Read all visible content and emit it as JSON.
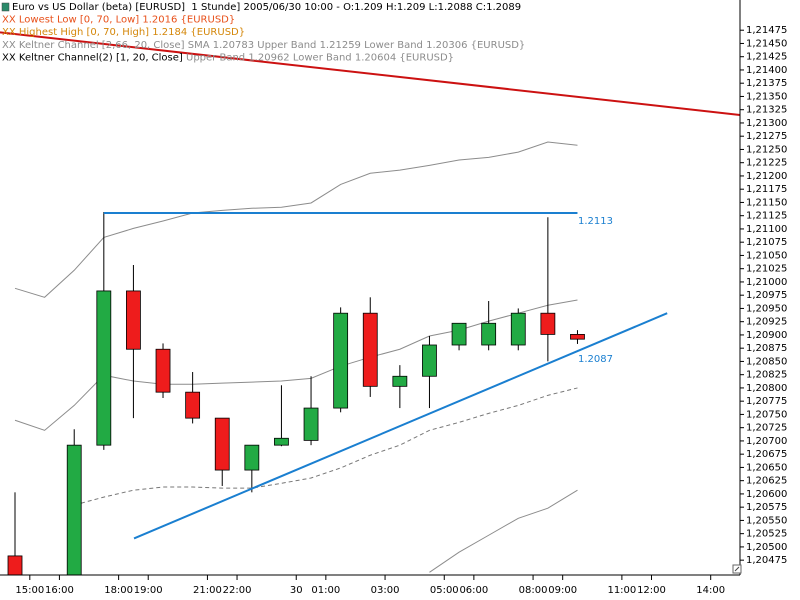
{
  "chart_data": {
    "type": "candlestick",
    "legend": [
      [
        {
          "text": "Euro vs US Dollar (beta) [EURUSD]  1 Stunde] 2005/06/30 10:00 - O:1.209 H:1.209 L:1.2088 C:1.2089",
          "color": "#000000"
        }
      ],
      [
        {
          "text": "XX Lowest Low [0, 70, Low] 1.2016 {EURUSD}",
          "color": "#e8501a"
        }
      ],
      [
        {
          "text": "XX Highest High [0, 70, High] 1.2184 {EURUSD}",
          "color": "#d4870a"
        }
      ],
      [
        {
          "text": "XX Keltner Channel [2,66, 20, Close] SMA 1.20783 Upper Band 1.21259 Lower Band 1.20306 {EURUSD}",
          "color": "#8c8c8c"
        }
      ],
      [
        {
          "text": "XX Keltner Channel(2) [1, 20, Close]",
          "color": "#000000"
        },
        {
          "text": " Upper Band 1.20962 Lower Band 1.20604 {EURUSD}",
          "color": "#8c8c8c"
        }
      ]
    ],
    "x": [
      0,
      2,
      3,
      4,
      5,
      6,
      7,
      8,
      9,
      10,
      11,
      12,
      13,
      14,
      15,
      16,
      17,
      18,
      19
    ],
    "open": [
      1.20483,
      1.2044,
      1.20692,
      1.20983,
      1.20873,
      1.20792,
      1.20743,
      1.20645,
      1.20692,
      1.20701,
      1.20762,
      1.20941,
      1.20803,
      1.20822,
      1.20881,
      1.20881,
      1.20881,
      1.20941,
      1.20901
    ],
    "high": [
      1.20603,
      1.20722,
      1.21132,
      1.21032,
      1.20884,
      1.2083,
      1.20743,
      1.20692,
      1.20805,
      1.20822,
      1.20952,
      1.20971,
      1.20843,
      1.20898,
      1.20922,
      1.20964,
      1.2095,
      1.21122,
      1.20909
    ],
    "low": [
      1.2043,
      1.2044,
      1.20683,
      1.20743,
      1.20781,
      1.20733,
      1.20615,
      1.20603,
      1.2069,
      1.20692,
      1.20754,
      1.20783,
      1.20762,
      1.20762,
      1.20871,
      1.20871,
      1.20871,
      1.2085,
      1.20883
    ],
    "close": [
      1.2044,
      1.20692,
      1.20983,
      1.20873,
      1.20792,
      1.20743,
      1.20645,
      1.20692,
      1.20705,
      1.20762,
      1.20941,
      1.20803,
      1.20822,
      1.20881,
      1.20922,
      1.20922,
      1.20941,
      1.20901,
      1.20892
    ],
    "up_color": "#22aa44",
    "down_color": "#ee1c1c",
    "series": [
      {
        "color": "#8c8c8c",
        "dash": false,
        "x": [
          0,
          1,
          2,
          3,
          4,
          5,
          6,
          7,
          8,
          9,
          10,
          11,
          12,
          13,
          14,
          15,
          16,
          17,
          18,
          19
        ],
        "values": [
          1.20988,
          1.20971,
          1.21022,
          1.21084,
          1.21101,
          1.21115,
          1.2113,
          1.21135,
          1.21139,
          1.21141,
          1.21149,
          1.21184,
          1.21205,
          1.21211,
          1.2122,
          1.2123,
          1.21235,
          1.21245,
          1.21264,
          1.21258
        ]
      },
      {
        "color": "#8c8c8c",
        "dash": false,
        "x": [
          0,
          1,
          2,
          3,
          4,
          5,
          6,
          7,
          8,
          9,
          10,
          11,
          12,
          13,
          14,
          15,
          16,
          17,
          18,
          19
        ],
        "values": [
          1.20739,
          1.2072,
          1.20767,
          1.20824,
          1.20813,
          1.20807,
          1.20807,
          1.20809,
          1.20811,
          1.20813,
          1.20818,
          1.20841,
          1.20858,
          1.20873,
          1.20898,
          1.20909,
          1.20926,
          1.20941,
          1.20956,
          1.20966
        ]
      },
      {
        "color": "#777777",
        "dash": true,
        "x": [
          0,
          1,
          2,
          3,
          4,
          5,
          6,
          7,
          8,
          9,
          10,
          11,
          12,
          13,
          14,
          15,
          16,
          17,
          18,
          19
        ],
        "values": [
          null,
          null,
          1.20579,
          1.20594,
          1.20607,
          1.20613,
          1.20613,
          1.20611,
          1.20611,
          1.2062,
          1.2063,
          1.20649,
          1.20673,
          1.20692,
          1.2072,
          1.20735,
          1.20752,
          1.20767,
          1.20786,
          1.208
        ]
      },
      {
        "color": "#8c8c8c",
        "dash": false,
        "x": [
          0,
          1,
          2,
          3,
          4,
          5,
          6,
          7,
          8,
          9,
          10,
          11,
          12,
          13,
          14,
          15,
          16,
          17,
          18,
          19
        ],
        "values": [
          null,
          null,
          null,
          null,
          null,
          null,
          null,
          null,
          null,
          null,
          null,
          null,
          null,
          null,
          1.20452,
          1.2049,
          1.20522,
          1.20554,
          1.20573,
          1.20607
        ]
      }
    ],
    "trendlines": [
      {
        "color": "#cc1111",
        "x": [
          -0.507,
          24.49
        ],
        "y": [
          1.21471,
          1.21315
        ]
      },
      {
        "color": "#1a7fd0",
        "x": [
          3,
          19
        ],
        "y": [
          1.2113,
          1.2113
        ],
        "label": "1.2113"
      },
      {
        "color": "#1a7fd0",
        "x": [
          4.02,
          22.03
        ],
        "y": [
          1.20516,
          1.20941
        ],
        "label": "1.2087"
      }
    ],
    "xlim": [
      -0.507,
      24.49
    ],
    "xticks": [
      {
        "value": 0.5,
        "label": "15:00"
      },
      {
        "value": 1.5,
        "label": "16:00"
      },
      {
        "value": 3.5,
        "label": "18:00"
      },
      {
        "value": 4.5,
        "label": "19:00"
      },
      {
        "value": 6.5,
        "label": "21:00"
      },
      {
        "value": 7.5,
        "label": "22:00"
      },
      {
        "value": 9.5,
        "label": "30"
      },
      {
        "value": 10.5,
        "label": "01:00"
      },
      {
        "value": 12.5,
        "label": "03:00"
      },
      {
        "value": 14.5,
        "label": "05:00"
      },
      {
        "value": 15.5,
        "label": "06:00"
      },
      {
        "value": 17.5,
        "label": "08:00"
      },
      {
        "value": 18.5,
        "label": "09:00"
      },
      {
        "value": 20.5,
        "label": "11:00"
      },
      {
        "value": 21.5,
        "label": "12:00"
      },
      {
        "value": 23.5,
        "label": "14:00"
      }
    ],
    "ylim": [
      1.20447,
      1.21532
    ],
    "yticks": [
      {
        "value": 1.20475,
        "label": "1,20475"
      },
      {
        "value": 1.205,
        "label": "1,20500"
      },
      {
        "value": 1.20525,
        "label": "1,20525"
      },
      {
        "value": 1.2055,
        "label": "1,20550"
      },
      {
        "value": 1.20575,
        "label": "1,20575"
      },
      {
        "value": 1.206,
        "label": "1,20600"
      },
      {
        "value": 1.20625,
        "label": "1,20625"
      },
      {
        "value": 1.2065,
        "label": "1,20650"
      },
      {
        "value": 1.20675,
        "label": "1,20675"
      },
      {
        "value": 1.207,
        "label": "1,20700"
      },
      {
        "value": 1.20725,
        "label": "1,20725"
      },
      {
        "value": 1.2075,
        "label": "1,20750"
      },
      {
        "value": 1.20775,
        "label": "1,20775"
      },
      {
        "value": 1.208,
        "label": "1,20800"
      },
      {
        "value": 1.20825,
        "label": "1,20825"
      },
      {
        "value": 1.2085,
        "label": "1,20850"
      },
      {
        "value": 1.20875,
        "label": "1,20875"
      },
      {
        "value": 1.209,
        "label": "1,20900"
      },
      {
        "value": 1.20925,
        "label": "1,20925"
      },
      {
        "value": 1.2095,
        "label": "1,20950"
      },
      {
        "value": 1.20975,
        "label": "1,20975"
      },
      {
        "value": 1.21,
        "label": "1,21000"
      },
      {
        "value": 1.21025,
        "label": "1,21025"
      },
      {
        "value": 1.2105,
        "label": "1,21050"
      },
      {
        "value": 1.21075,
        "label": "1,21075"
      },
      {
        "value": 1.211,
        "label": "1,21100"
      },
      {
        "value": 1.21125,
        "label": "1,21125"
      },
      {
        "value": 1.2115,
        "label": "1,21150"
      },
      {
        "value": 1.21175,
        "label": "1,21175"
      },
      {
        "value": 1.212,
        "label": "1,21200"
      },
      {
        "value": 1.21225,
        "label": "1,21225"
      },
      {
        "value": 1.2125,
        "label": "1,21250"
      },
      {
        "value": 1.21275,
        "label": "1,21275"
      },
      {
        "value": 1.213,
        "label": "1,21300"
      },
      {
        "value": 1.21325,
        "label": "1,21325"
      },
      {
        "value": 1.2135,
        "label": "1,21350"
      },
      {
        "value": 1.21375,
        "label": "1,21375"
      },
      {
        "value": 1.214,
        "label": "1,21400"
      },
      {
        "value": 1.21425,
        "label": "1,21425"
      },
      {
        "value": 1.2145,
        "label": "1,21450"
      },
      {
        "value": 1.21475,
        "label": "1,21475"
      }
    ]
  }
}
